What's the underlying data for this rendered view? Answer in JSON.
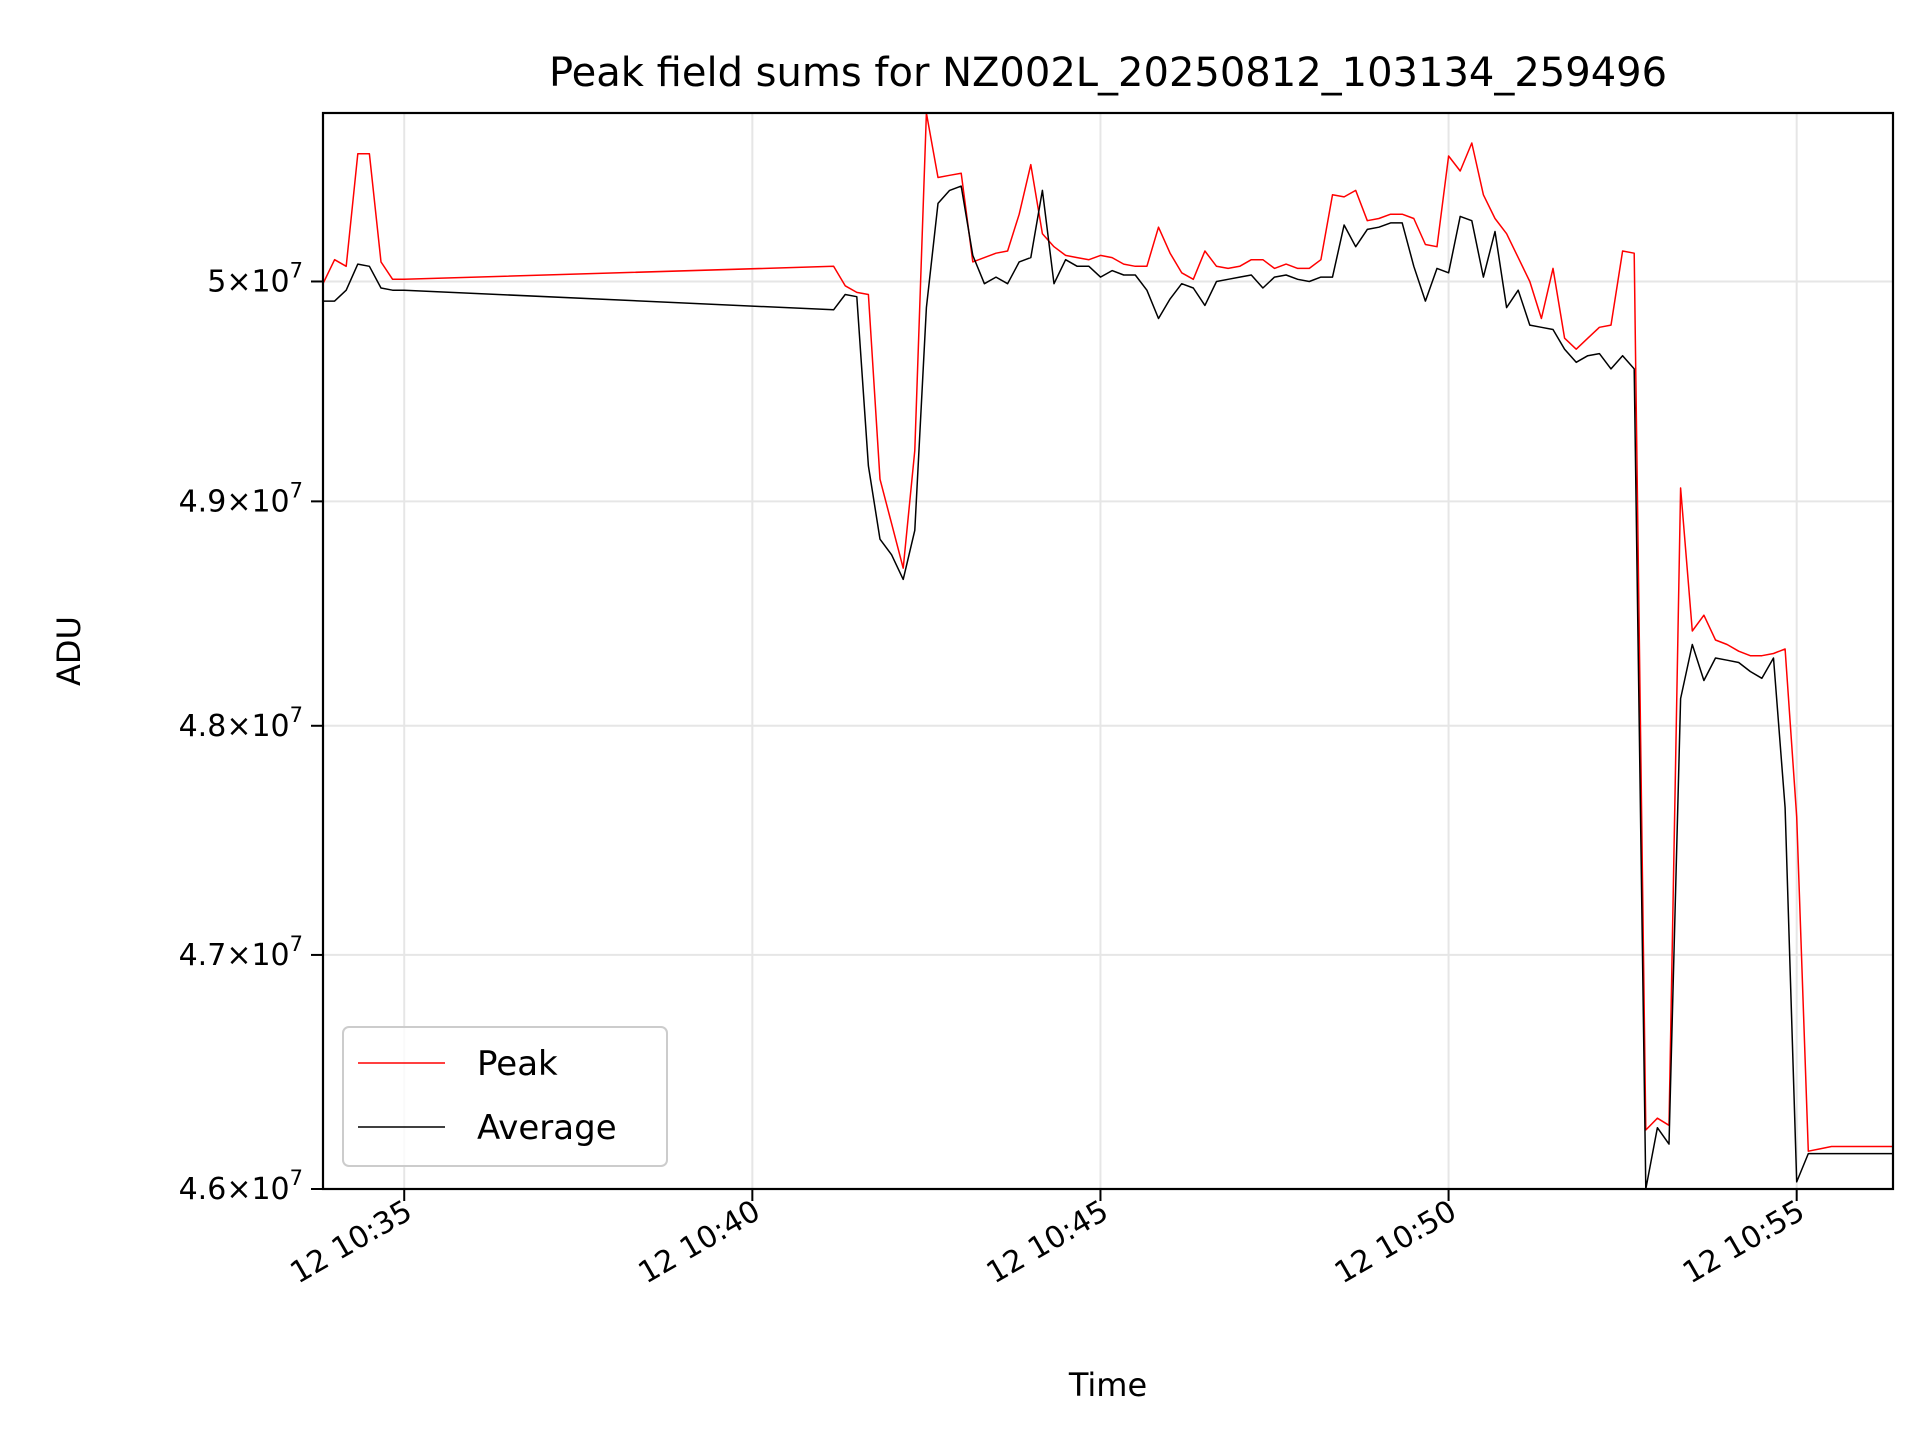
{
  "chart_data": {
    "type": "line",
    "title": "Peak field sums for NZ002L_20250812_103134_259496",
    "xlabel": "Time",
    "ylabel": "ADU",
    "x_axis": {
      "unit": "minutes",
      "range": [
        "12 10:33:50",
        "12 10:56:23"
      ],
      "ticks": [
        {
          "t": "12 10:35:00",
          "label": "12 10:35"
        },
        {
          "t": "12 10:40:00",
          "label": "12 10:40"
        },
        {
          "t": "12 10:45:00",
          "label": "12 10:45"
        },
        {
          "t": "12 10:50:00",
          "label": "12 10:50"
        },
        {
          "t": "12 10:55:00",
          "label": "12 10:55"
        }
      ]
    },
    "y_axis": {
      "scale": "log",
      "range": [
        46000000,
        50780000
      ],
      "ticks": [
        {
          "value": 46000000,
          "mantissa": "4.6",
          "exp": "7"
        },
        {
          "value": 47000000,
          "mantissa": "4.7",
          "exp": "7"
        },
        {
          "value": 48000000,
          "mantissa": "4.8",
          "exp": "7"
        },
        {
          "value": 49000000,
          "mantissa": "4.9",
          "exp": "7"
        },
        {
          "value": 50000000,
          "mantissa": "5",
          "exp": "7"
        }
      ]
    },
    "grid": true,
    "legend": {
      "position": "lower-left"
    },
    "series": [
      {
        "name": "Peak",
        "color": "#ff0000",
        "x": [
          "12 10:33:50",
          "12 10:34:00",
          "12 10:34:10",
          "12 10:34:20",
          "12 10:34:30",
          "12 10:34:40",
          "12 10:34:50",
          "12 10:35:00",
          "12 10:41:10",
          "12 10:41:20",
          "12 10:41:30",
          "12 10:41:40",
          "12 10:41:50",
          "12 10:42:00",
          "12 10:42:10",
          "12 10:42:20",
          "12 10:42:30",
          "12 10:42:40",
          "12 10:42:50",
          "12 10:43:00",
          "12 10:43:10",
          "12 10:43:20",
          "12 10:43:30",
          "12 10:43:40",
          "12 10:43:50",
          "12 10:44:00",
          "12 10:44:10",
          "12 10:44:20",
          "12 10:44:30",
          "12 10:44:40",
          "12 10:44:50",
          "12 10:45:00",
          "12 10:45:10",
          "12 10:45:20",
          "12 10:45:30",
          "12 10:45:40",
          "12 10:45:50",
          "12 10:46:00",
          "12 10:46:10",
          "12 10:46:20",
          "12 10:46:30",
          "12 10:46:40",
          "12 10:46:50",
          "12 10:47:00",
          "12 10:47:10",
          "12 10:47:20",
          "12 10:47:30",
          "12 10:47:40",
          "12 10:47:50",
          "12 10:48:00",
          "12 10:48:10",
          "12 10:48:20",
          "12 10:48:30",
          "12 10:48:40",
          "12 10:48:50",
          "12 10:49:00",
          "12 10:49:10",
          "12 10:49:20",
          "12 10:49:30",
          "12 10:49:40",
          "12 10:49:50",
          "12 10:50:00",
          "12 10:50:10",
          "12 10:50:20",
          "12 10:50:30",
          "12 10:50:40",
          "12 10:50:50",
          "12 10:51:00",
          "12 10:51:10",
          "12 10:51:20",
          "12 10:51:30",
          "12 10:51:40",
          "12 10:51:50",
          "12 10:52:00",
          "12 10:52:10",
          "12 10:52:20",
          "12 10:52:30",
          "12 10:52:40",
          "12 10:52:50",
          "12 10:53:00",
          "12 10:53:10",
          "12 10:53:20",
          "12 10:53:30",
          "12 10:53:40",
          "12 10:53:50",
          "12 10:54:00",
          "12 10:54:10",
          "12 10:54:20",
          "12 10:54:30",
          "12 10:54:40",
          "12 10:54:50",
          "12 10:55:00",
          "12 10:55:10",
          "12 10:55:20",
          "12 10:55:30",
          "12 10:55:40",
          "12 10:55:50",
          "12 10:56:00",
          "12 10:56:10",
          "12 10:56:23"
        ],
        "y": [
          49990000,
          50100000,
          50070000,
          50590000,
          50590000,
          50090000,
          50010000,
          50010000,
          50070000,
          49980000,
          49950000,
          49940000,
          49100000,
          48900000,
          48700000,
          49230000,
          50780000,
          50480000,
          50490000,
          50500000,
          50090000,
          50110000,
          50130000,
          50140000,
          50310000,
          50540000,
          50220000,
          50160000,
          50120000,
          50110000,
          50100000,
          50120000,
          50110000,
          50080000,
          50070000,
          50070000,
          50250000,
          50130000,
          50040000,
          50010000,
          50140000,
          50070000,
          50060000,
          50070000,
          50100000,
          50100000,
          50060000,
          50080000,
          50060000,
          50060000,
          50100000,
          50400000,
          50390000,
          50420000,
          50280000,
          50290000,
          50310000,
          50310000,
          50290000,
          50170000,
          50160000,
          50580000,
          50510000,
          50640000,
          50400000,
          50290000,
          50220000,
          50110000,
          50000000,
          49830000,
          50060000,
          49740000,
          49690000,
          49740000,
          49790000,
          49800000,
          50140000,
          50130000,
          46250000,
          46300000,
          46270000,
          49060000,
          48420000,
          48490000,
          48380000,
          48360000,
          48330000,
          48310000,
          48310000,
          48320000,
          48340000,
          47600000,
          46160000,
          46170000,
          46180000,
          46180000,
          46180000,
          46180000,
          46180000,
          46180000
        ]
      },
      {
        "name": "Average",
        "color": "#000000",
        "x": [
          "12 10:33:50",
          "12 10:34:00",
          "12 10:34:10",
          "12 10:34:20",
          "12 10:34:30",
          "12 10:34:40",
          "12 10:34:50",
          "12 10:35:00",
          "12 10:41:10",
          "12 10:41:20",
          "12 10:41:30",
          "12 10:41:40",
          "12 10:41:50",
          "12 10:42:00",
          "12 10:42:10",
          "12 10:42:20",
          "12 10:42:30",
          "12 10:42:40",
          "12 10:42:50",
          "12 10:43:00",
          "12 10:43:10",
          "12 10:43:20",
          "12 10:43:30",
          "12 10:43:40",
          "12 10:43:50",
          "12 10:44:00",
          "12 10:44:10",
          "12 10:44:20",
          "12 10:44:30",
          "12 10:44:40",
          "12 10:44:50",
          "12 10:45:00",
          "12 10:45:10",
          "12 10:45:20",
          "12 10:45:30",
          "12 10:45:40",
          "12 10:45:50",
          "12 10:46:00",
          "12 10:46:10",
          "12 10:46:20",
          "12 10:46:30",
          "12 10:46:40",
          "12 10:46:50",
          "12 10:47:00",
          "12 10:47:10",
          "12 10:47:20",
          "12 10:47:30",
          "12 10:47:40",
          "12 10:47:50",
          "12 10:48:00",
          "12 10:48:10",
          "12 10:48:20",
          "12 10:48:30",
          "12 10:48:40",
          "12 10:48:50",
          "12 10:49:00",
          "12 10:49:10",
          "12 10:49:20",
          "12 10:49:30",
          "12 10:49:40",
          "12 10:49:50",
          "12 10:50:00",
          "12 10:50:10",
          "12 10:50:20",
          "12 10:50:30",
          "12 10:50:40",
          "12 10:50:50",
          "12 10:51:00",
          "12 10:51:10",
          "12 10:51:20",
          "12 10:51:30",
          "12 10:51:40",
          "12 10:51:50",
          "12 10:52:00",
          "12 10:52:10",
          "12 10:52:20",
          "12 10:52:30",
          "12 10:52:40",
          "12 10:52:50",
          "12 10:53:00",
          "12 10:53:10",
          "12 10:53:20",
          "12 10:53:30",
          "12 10:53:40",
          "12 10:53:50",
          "12 10:54:00",
          "12 10:54:10",
          "12 10:54:20",
          "12 10:54:30",
          "12 10:54:40",
          "12 10:54:50",
          "12 10:55:00",
          "12 10:55:10",
          "12 10:55:20",
          "12 10:55:30",
          "12 10:55:40",
          "12 10:55:50",
          "12 10:56:00",
          "12 10:56:10",
          "12 10:56:23"
        ],
        "y": [
          49910000,
          49910000,
          49960000,
          50080000,
          50070000,
          49970000,
          49960000,
          49960000,
          49870000,
          49940000,
          49930000,
          49160000,
          48830000,
          48760000,
          48650000,
          48870000,
          49880000,
          50360000,
          50420000,
          50440000,
          50120000,
          49990000,
          50020000,
          49990000,
          50090000,
          50110000,
          50420000,
          49990000,
          50100000,
          50070000,
          50070000,
          50020000,
          50050000,
          50030000,
          50030000,
          49960000,
          49830000,
          49920000,
          49990000,
          49970000,
          49890000,
          50000000,
          50010000,
          50020000,
          50030000,
          49970000,
          50020000,
          50030000,
          50010000,
          50000000,
          50020000,
          50020000,
          50260000,
          50160000,
          50240000,
          50250000,
          50270000,
          50270000,
          50070000,
          49910000,
          50060000,
          50040000,
          50300000,
          50280000,
          50020000,
          50230000,
          49880000,
          49960000,
          49800000,
          49790000,
          49780000,
          49690000,
          49630000,
          49660000,
          49670000,
          49600000,
          49660000,
          49600000,
          46000000,
          46260000,
          46190000,
          48120000,
          48360000,
          48200000,
          48300000,
          48290000,
          48280000,
          48240000,
          48210000,
          48300000,
          47640000,
          46030000,
          46150000,
          46150000,
          46150000,
          46150000,
          46150000,
          46150000,
          46150000,
          46150000
        ]
      }
    ]
  }
}
